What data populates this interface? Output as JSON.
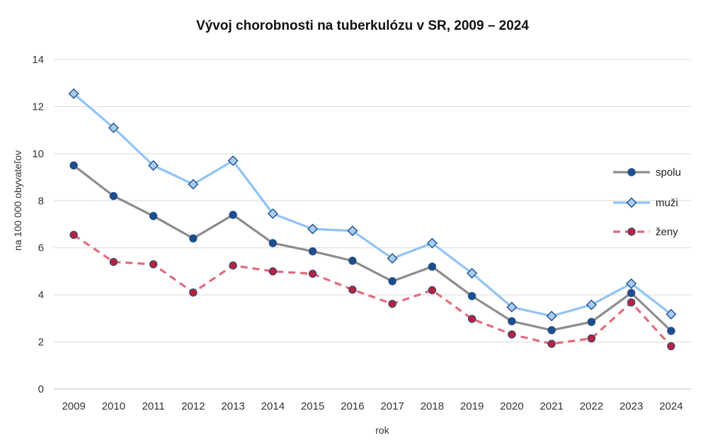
{
  "chart_data": {
    "type": "line",
    "title": "Vývoj chorobnosti na tuberkulózu v SR, 2009 – 2024",
    "xlabel": "rok",
    "ylabel": "na 100 000 obyvateľov",
    "categories": [
      "2009",
      "2010",
      "2011",
      "2012",
      "2013",
      "2014",
      "2015",
      "2016",
      "2017",
      "2018",
      "2019",
      "2020",
      "2021",
      "2022",
      "2023",
      "2024"
    ],
    "ylim": [
      0,
      14
    ],
    "yticks": [
      "0",
      "2",
      "4",
      "6",
      "8",
      "10",
      "12",
      "14"
    ],
    "grid": true,
    "legend_position": "right",
    "series": [
      {
        "name": "spolu",
        "color": "#8c8c8c",
        "marker_color": "#1f4e8c",
        "marker": "circle",
        "dash": "solid",
        "values": [
          9.5,
          8.2,
          7.35,
          6.4,
          7.4,
          6.2,
          5.85,
          5.45,
          4.58,
          5.2,
          3.95,
          2.88,
          2.5,
          2.85,
          4.08,
          2.47
        ]
      },
      {
        "name": "muži",
        "color": "#8fc3f5",
        "marker_color": "#a9cdf2",
        "marker_stroke": "#1f4e8c",
        "marker": "diamond",
        "dash": "solid",
        "values": [
          12.55,
          11.1,
          9.5,
          8.7,
          9.7,
          7.45,
          6.8,
          6.72,
          5.55,
          6.2,
          4.92,
          3.48,
          3.1,
          3.58,
          4.48,
          3.18
        ]
      },
      {
        "name": "ženy",
        "color": "#e06b7d",
        "marker_color": "#b5243a",
        "marker_stroke": "#1f4e8c",
        "marker": "circle",
        "dash": "dashed",
        "values": [
          6.55,
          5.4,
          5.3,
          4.1,
          5.25,
          5.0,
          4.9,
          4.22,
          3.62,
          4.2,
          2.98,
          2.32,
          1.92,
          2.15,
          3.68,
          1.82
        ]
      }
    ]
  }
}
